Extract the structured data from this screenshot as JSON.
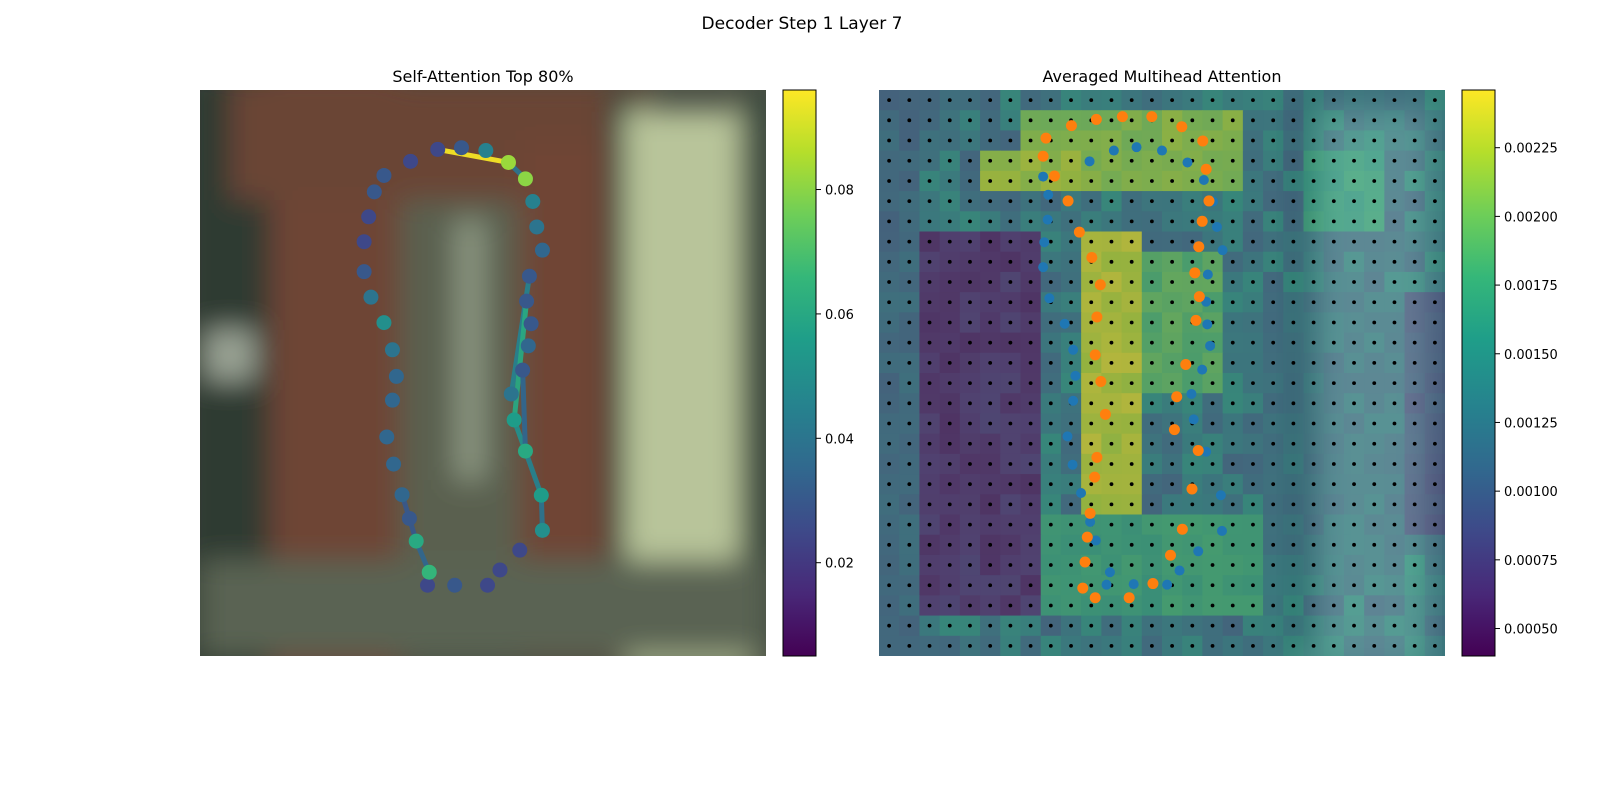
{
  "figure": {
    "suptitle": "Decoder Step 1 Layer 7"
  },
  "colors": {
    "viridis": [
      "#440154",
      "#482878",
      "#3e4989",
      "#31688e",
      "#26828e",
      "#1f9e89",
      "#35b779",
      "#6ece58",
      "#b5de2b",
      "#fde725"
    ],
    "blue_points": "#1f77b4",
    "orange_points": "#ff7f0e",
    "grid_dots": "#000000"
  },
  "chart_data": [
    {
      "type": "scatter",
      "title": "Self-Attention Top 80%",
      "description": "Contour points over blurred image, colored by self-attention weight; top attention edges drawn as lines",
      "colorbar": {
        "vmin": 0.005,
        "vmax": 0.096,
        "ticks": [
          0.02,
          0.04,
          0.06,
          0.08
        ],
        "tick_labels": [
          "0.02",
          "0.04",
          "0.06",
          "0.08"
        ]
      },
      "xlim": [
        0,
        1
      ],
      "ylim": [
        0,
        1
      ],
      "points": [
        {
          "x": 0.42,
          "y": 0.105,
          "v": 0.025
        },
        {
          "x": 0.462,
          "y": 0.102,
          "v": 0.03
        },
        {
          "x": 0.505,
          "y": 0.107,
          "v": 0.045
        },
        {
          "x": 0.545,
          "y": 0.128,
          "v": 0.082
        },
        {
          "x": 0.575,
          "y": 0.157,
          "v": 0.08
        },
        {
          "x": 0.588,
          "y": 0.197,
          "v": 0.045
        },
        {
          "x": 0.595,
          "y": 0.242,
          "v": 0.04
        },
        {
          "x": 0.605,
          "y": 0.283,
          "v": 0.035
        },
        {
          "x": 0.582,
          "y": 0.329,
          "v": 0.03
        },
        {
          "x": 0.577,
          "y": 0.373,
          "v": 0.03
        },
        {
          "x": 0.585,
          "y": 0.413,
          "v": 0.03
        },
        {
          "x": 0.58,
          "y": 0.452,
          "v": 0.035
        },
        {
          "x": 0.57,
          "y": 0.495,
          "v": 0.03
        },
        {
          "x": 0.55,
          "y": 0.537,
          "v": 0.04
        },
        {
          "x": 0.555,
          "y": 0.583,
          "v": 0.055
        },
        {
          "x": 0.575,
          "y": 0.638,
          "v": 0.06
        },
        {
          "x": 0.603,
          "y": 0.716,
          "v": 0.055
        },
        {
          "x": 0.605,
          "y": 0.778,
          "v": 0.05
        },
        {
          "x": 0.565,
          "y": 0.813,
          "v": 0.025
        },
        {
          "x": 0.53,
          "y": 0.848,
          "v": 0.025
        },
        {
          "x": 0.508,
          "y": 0.875,
          "v": 0.025
        },
        {
          "x": 0.45,
          "y": 0.875,
          "v": 0.03
        },
        {
          "x": 0.402,
          "y": 0.875,
          "v": 0.025
        },
        {
          "x": 0.405,
          "y": 0.852,
          "v": 0.065
        },
        {
          "x": 0.382,
          "y": 0.797,
          "v": 0.06
        },
        {
          "x": 0.37,
          "y": 0.757,
          "v": 0.03
        },
        {
          "x": 0.357,
          "y": 0.715,
          "v": 0.035
        },
        {
          "x": 0.342,
          "y": 0.661,
          "v": 0.035
        },
        {
          "x": 0.33,
          "y": 0.613,
          "v": 0.035
        },
        {
          "x": 0.34,
          "y": 0.548,
          "v": 0.035
        },
        {
          "x": 0.347,
          "y": 0.506,
          "v": 0.035
        },
        {
          "x": 0.34,
          "y": 0.459,
          "v": 0.04
        },
        {
          "x": 0.325,
          "y": 0.411,
          "v": 0.05
        },
        {
          "x": 0.302,
          "y": 0.366,
          "v": 0.04
        },
        {
          "x": 0.29,
          "y": 0.321,
          "v": 0.03
        },
        {
          "x": 0.29,
          "y": 0.268,
          "v": 0.025
        },
        {
          "x": 0.298,
          "y": 0.224,
          "v": 0.025
        },
        {
          "x": 0.308,
          "y": 0.18,
          "v": 0.03
        },
        {
          "x": 0.325,
          "y": 0.151,
          "v": 0.03
        },
        {
          "x": 0.372,
          "y": 0.126,
          "v": 0.025
        }
      ],
      "edges": [
        {
          "from": 0,
          "to": 3,
          "v": 0.095
        },
        {
          "from": 3,
          "to": 4,
          "v": 0.04
        },
        {
          "from": 8,
          "to": 13,
          "v": 0.045
        },
        {
          "from": 9,
          "to": 14,
          "v": 0.06
        },
        {
          "from": 14,
          "to": 15,
          "v": 0.05
        },
        {
          "from": 15,
          "to": 16,
          "v": 0.045
        },
        {
          "from": 16,
          "to": 17,
          "v": 0.04
        },
        {
          "from": 12,
          "to": 15,
          "v": 0.035
        },
        {
          "from": 23,
          "to": 24,
          "v": 0.035
        },
        {
          "from": 24,
          "to": 25,
          "v": 0.03
        },
        {
          "from": 25,
          "to": 26,
          "v": 0.03
        },
        {
          "from": 22,
          "to": 23,
          "v": 0.03
        }
      ]
    },
    {
      "type": "heatmap",
      "title": "Averaged Multihead Attention",
      "description": "28x28 averaged attention heatmap over image with encoder grid dots, blue (input) and orange (predicted) contour points",
      "colorbar": {
        "vmin": 0.0004,
        "vmax": 0.00246,
        "ticks": [
          0.0005,
          0.00075,
          0.001,
          0.00125,
          0.0015,
          0.00175,
          0.002,
          0.00225
        ],
        "tick_labels": [
          "0.00050",
          "0.00075",
          "0.00100",
          "0.00125",
          "0.00150",
          "0.00175",
          "0.00200",
          "0.00225"
        ]
      },
      "grid": {
        "rows": 28,
        "cols": 28
      },
      "heat_regions": [
        {
          "c0": 7,
          "c1": 18,
          "r0": 1,
          "r1": 5,
          "v": 0.0021
        },
        {
          "c0": 5,
          "c1": 10,
          "r0": 3,
          "r1": 5,
          "v": 0.0022
        },
        {
          "c0": 10,
          "c1": 13,
          "r0": 7,
          "r1": 22,
          "v": 0.0023
        },
        {
          "c0": 13,
          "c1": 17,
          "r0": 8,
          "r1": 15,
          "v": 0.0019
        },
        {
          "c0": 8,
          "c1": 19,
          "r0": 21,
          "r1": 26,
          "v": 0.0017
        },
        {
          "c0": 21,
          "c1": 25,
          "r0": 3,
          "r1": 7,
          "v": 0.0016
        },
        {
          "c0": 2,
          "c1": 8,
          "r0": 7,
          "r1": 26,
          "v": 0.0006
        },
        {
          "c0": 26,
          "c1": 28,
          "r0": 10,
          "r1": 22,
          "v": 0.0009
        },
        {
          "c0": 0,
          "c1": 2,
          "r0": 0,
          "r1": 28,
          "v": 0.0011
        },
        {
          "c0": 19,
          "c1": 26,
          "r0": 10,
          "r1": 24,
          "v": 0.0012
        }
      ],
      "blue_points": [
        {
          "x": 0.29,
          "y": 0.153
        },
        {
          "x": 0.299,
          "y": 0.185
        },
        {
          "x": 0.298,
          "y": 0.229
        },
        {
          "x": 0.292,
          "y": 0.269
        },
        {
          "x": 0.29,
          "y": 0.313
        },
        {
          "x": 0.301,
          "y": 0.368
        },
        {
          "x": 0.328,
          "y": 0.413
        },
        {
          "x": 0.343,
          "y": 0.459
        },
        {
          "x": 0.347,
          "y": 0.505
        },
        {
          "x": 0.343,
          "y": 0.549
        },
        {
          "x": 0.333,
          "y": 0.612
        },
        {
          "x": 0.342,
          "y": 0.662
        },
        {
          "x": 0.357,
          "y": 0.712
        },
        {
          "x": 0.373,
          "y": 0.763
        },
        {
          "x": 0.383,
          "y": 0.796
        },
        {
          "x": 0.408,
          "y": 0.852
        },
        {
          "x": 0.402,
          "y": 0.874
        },
        {
          "x": 0.45,
          "y": 0.873
        },
        {
          "x": 0.509,
          "y": 0.874
        },
        {
          "x": 0.531,
          "y": 0.849
        },
        {
          "x": 0.564,
          "y": 0.815
        },
        {
          "x": 0.606,
          "y": 0.779
        },
        {
          "x": 0.604,
          "y": 0.716
        },
        {
          "x": 0.578,
          "y": 0.639
        },
        {
          "x": 0.556,
          "y": 0.582
        },
        {
          "x": 0.552,
          "y": 0.537
        },
        {
          "x": 0.571,
          "y": 0.494
        },
        {
          "x": 0.585,
          "y": 0.452
        },
        {
          "x": 0.58,
          "y": 0.414
        },
        {
          "x": 0.578,
          "y": 0.374
        },
        {
          "x": 0.581,
          "y": 0.326
        },
        {
          "x": 0.607,
          "y": 0.283
        },
        {
          "x": 0.597,
          "y": 0.242
        },
        {
          "x": 0.59,
          "y": 0.197
        },
        {
          "x": 0.574,
          "y": 0.159
        },
        {
          "x": 0.545,
          "y": 0.128
        },
        {
          "x": 0.5,
          "y": 0.107
        },
        {
          "x": 0.455,
          "y": 0.101
        },
        {
          "x": 0.415,
          "y": 0.107
        },
        {
          "x": 0.372,
          "y": 0.126
        }
      ],
      "orange_points": [
        {
          "x": 0.295,
          "y": 0.085
        },
        {
          "x": 0.34,
          "y": 0.063
        },
        {
          "x": 0.384,
          "y": 0.052
        },
        {
          "x": 0.43,
          "y": 0.047
        },
        {
          "x": 0.482,
          "y": 0.047
        },
        {
          "x": 0.535,
          "y": 0.065
        },
        {
          "x": 0.572,
          "y": 0.09
        },
        {
          "x": 0.29,
          "y": 0.117
        },
        {
          "x": 0.31,
          "y": 0.152
        },
        {
          "x": 0.334,
          "y": 0.196
        },
        {
          "x": 0.354,
          "y": 0.251
        },
        {
          "x": 0.376,
          "y": 0.296
        },
        {
          "x": 0.391,
          "y": 0.344
        },
        {
          "x": 0.385,
          "y": 0.401
        },
        {
          "x": 0.382,
          "y": 0.468
        },
        {
          "x": 0.392,
          "y": 0.515
        },
        {
          "x": 0.4,
          "y": 0.573
        },
        {
          "x": 0.385,
          "y": 0.649
        },
        {
          "x": 0.381,
          "y": 0.684
        },
        {
          "x": 0.373,
          "y": 0.748
        },
        {
          "x": 0.368,
          "y": 0.79
        },
        {
          "x": 0.364,
          "y": 0.834
        },
        {
          "x": 0.36,
          "y": 0.88
        },
        {
          "x": 0.382,
          "y": 0.897
        },
        {
          "x": 0.442,
          "y": 0.897
        },
        {
          "x": 0.484,
          "y": 0.872
        },
        {
          "x": 0.515,
          "y": 0.822
        },
        {
          "x": 0.536,
          "y": 0.776
        },
        {
          "x": 0.553,
          "y": 0.705
        },
        {
          "x": 0.564,
          "y": 0.637
        },
        {
          "x": 0.522,
          "y": 0.6
        },
        {
          "x": 0.526,
          "y": 0.542
        },
        {
          "x": 0.542,
          "y": 0.485
        },
        {
          "x": 0.56,
          "y": 0.407
        },
        {
          "x": 0.566,
          "y": 0.365
        },
        {
          "x": 0.558,
          "y": 0.323
        },
        {
          "x": 0.565,
          "y": 0.277
        },
        {
          "x": 0.571,
          "y": 0.232
        },
        {
          "x": 0.583,
          "y": 0.196
        },
        {
          "x": 0.578,
          "y": 0.14
        }
      ]
    }
  ]
}
